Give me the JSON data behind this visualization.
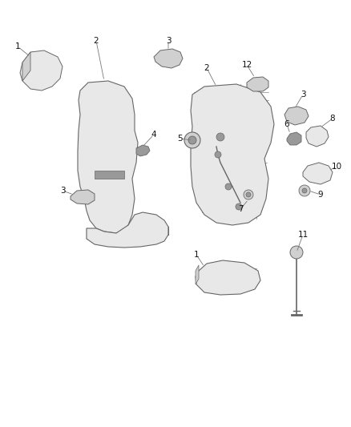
{
  "background_color": "#ffffff",
  "fig_width": 4.38,
  "fig_height": 5.33,
  "dpi": 100,
  "edge_color": "#666666",
  "face_color": "#e8e8e8",
  "face_color2": "#d0d0d0",
  "dark_color": "#999999",
  "line_width": 0.7,
  "label_fontsize": 7.5
}
